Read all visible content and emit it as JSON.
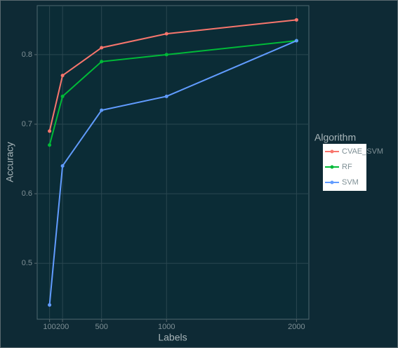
{
  "chart_data": {
    "type": "line",
    "x_label": "Labels",
    "y_label": "Accuracy",
    "legend_title": "Algorithm",
    "x": [
      100,
      200,
      500,
      1000,
      2000
    ],
    "series": [
      {
        "name": "CVAE_SVM",
        "color": "#f8766d",
        "values": [
          0.69,
          0.77,
          0.81,
          0.83,
          0.85
        ]
      },
      {
        "name": "RF",
        "color": "#00ba38",
        "values": [
          0.67,
          0.74,
          0.79,
          0.8,
          0.82
        ]
      },
      {
        "name": "SVM",
        "color": "#619cff",
        "values": [
          0.44,
          0.64,
          0.72,
          0.74,
          0.82
        ]
      }
    ],
    "xlim": [
      5,
      2095
    ],
    "ylim": [
      0.4195,
      0.8705
    ],
    "xticks": [
      100,
      200,
      500,
      1000,
      2000
    ],
    "yticks": [
      0.5,
      0.6,
      0.7,
      0.8
    ],
    "grid": true,
    "legend": "right"
  }
}
